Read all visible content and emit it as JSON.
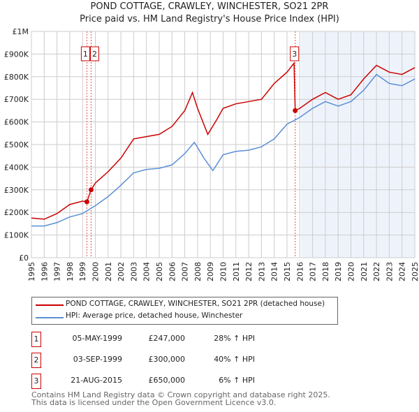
{
  "chart_data": {
    "type": "line",
    "title": "POND COTTAGE, CRAWLEY, WINCHESTER, SO21 2PR",
    "subtitle": "Price paid vs. HM Land Registry's House Price Index (HPI)",
    "ylim": [
      0,
      1000000
    ],
    "xlim": [
      1995,
      2025
    ],
    "yticks": [
      {
        "v": 0,
        "l": "£0"
      },
      {
        "v": 100000,
        "l": "£100K"
      },
      {
        "v": 200000,
        "l": "£200K"
      },
      {
        "v": 300000,
        "l": "£300K"
      },
      {
        "v": 400000,
        "l": "£400K"
      },
      {
        "v": 500000,
        "l": "£500K"
      },
      {
        "v": 600000,
        "l": "£600K"
      },
      {
        "v": 700000,
        "l": "£700K"
      },
      {
        "v": 800000,
        "l": "£800K"
      },
      {
        "v": 900000,
        "l": "£900K"
      },
      {
        "v": 1000000,
        "l": "£1M"
      }
    ],
    "xticks": [
      "1995",
      "1996",
      "1997",
      "1998",
      "1999",
      "2000",
      "2001",
      "2002",
      "2003",
      "2004",
      "2005",
      "2006",
      "2007",
      "2008",
      "2009",
      "2010",
      "2011",
      "2012",
      "2013",
      "2014",
      "2015",
      "2016",
      "2017",
      "2018",
      "2019",
      "2020",
      "2021",
      "2022",
      "2023",
      "2024",
      "2025"
    ],
    "shaded_from": 2016.1,
    "series": [
      {
        "name": "POND COTTAGE, CRAWLEY, WINCHESTER, SO21 2PR (detached house)",
        "color": "#cc0000",
        "x": [
          1995,
          1996,
          1997,
          1998,
          1999.0,
          1999.34,
          1999.67,
          2000,
          2001,
          2002,
          2003,
          2004,
          2005,
          2006,
          2007,
          2007.6,
          2008,
          2008.8,
          2009.5,
          2010,
          2011,
          2012,
          2013,
          2014,
          2015,
          2015.55,
          2015.64,
          2016,
          2017,
          2018,
          2019,
          2020,
          2021,
          2022,
          2023,
          2024,
          2025
        ],
        "y": [
          175000,
          170000,
          195000,
          235000,
          250000,
          247000,
          300000,
          330000,
          380000,
          440000,
          525000,
          535000,
          545000,
          580000,
          650000,
          730000,
          660000,
          545000,
          610000,
          660000,
          680000,
          690000,
          700000,
          770000,
          820000,
          860000,
          650000,
          660000,
          700000,
          730000,
          700000,
          720000,
          790000,
          850000,
          820000,
          810000,
          840000
        ]
      },
      {
        "name": "HPI: Average price, detached house, Winchester",
        "color": "#5b8fd6",
        "x": [
          1995,
          1996,
          1997,
          1998,
          1999,
          2000,
          2001,
          2002,
          2003,
          2004,
          2005,
          2006,
          2007,
          2007.75,
          2008.5,
          2009.2,
          2010,
          2011,
          2012,
          2013,
          2014,
          2015,
          2016,
          2017,
          2018,
          2019,
          2020,
          2021,
          2022,
          2023,
          2024,
          2025
        ],
        "y": [
          140000,
          140000,
          155000,
          180000,
          195000,
          230000,
          270000,
          320000,
          375000,
          390000,
          395000,
          410000,
          460000,
          510000,
          440000,
          385000,
          455000,
          470000,
          475000,
          490000,
          525000,
          590000,
          620000,
          660000,
          690000,
          670000,
          690000,
          740000,
          810000,
          770000,
          760000,
          790000
        ]
      }
    ],
    "sales": [
      {
        "label": "1",
        "x": 1999.34,
        "y": 247000,
        "date": "05-MAY-1999",
        "price": "£247,000",
        "hpi": "28% ↑ HPI"
      },
      {
        "label": "2",
        "x": 1999.67,
        "y": 300000,
        "date": "03-SEP-1999",
        "price": "£300,000",
        "hpi": "40% ↑ HPI"
      },
      {
        "label": "3",
        "x": 2015.64,
        "y": 650000,
        "date": "21-AUG-2015",
        "price": "£650,000",
        "hpi": "6% ↑ HPI"
      }
    ]
  },
  "footer1": "Contains HM Land Registry data © Crown copyright and database right 2025.",
  "footer2": "This data is licensed under the Open Government Licence v3.0."
}
